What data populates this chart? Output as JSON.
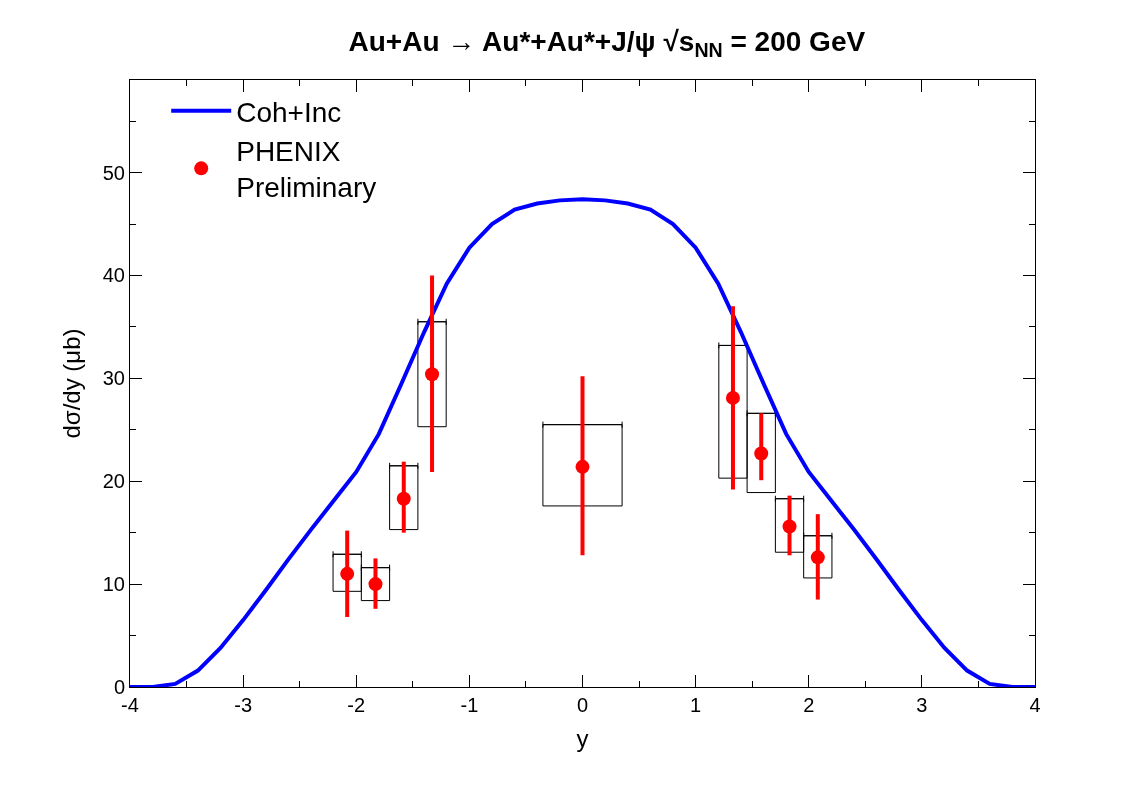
{
  "chart_data": {
    "type": "scatter",
    "title": "Au+Au → Au*+Au*+J/ψ √s$_{NN}$ = 200 GeV",
    "xlabel": "y",
    "ylabel": "dσ/dy (μb)",
    "xlim": [
      -4,
      4
    ],
    "xticks": [
      -4,
      -3,
      -2,
      -1,
      0,
      1,
      2,
      3,
      4
    ],
    "ylim": [
      0,
      59
    ],
    "yticks": [
      0,
      10,
      20,
      30,
      40,
      50
    ],
    "legend": "top",
    "series": [
      {
        "type": "line",
        "name": "Coh+Inc",
        "color": "#0000ff",
        "x": [
          -4,
          -3.8,
          -3.6,
          -3.4,
          -3.2,
          -3.0,
          -2.8,
          -2.6,
          -2.4,
          -2.2,
          -2.0,
          -1.8,
          -1.6,
          -1.4,
          -1.2,
          -1.0,
          -0.8,
          -0.6,
          -0.4,
          -0.2,
          0,
          0.2,
          0.4,
          0.6,
          0.8,
          1.0,
          1.2,
          1.4,
          1.6,
          1.8,
          2.0,
          2.2,
          2.4,
          2.6,
          2.8,
          3.0,
          3.2,
          3.4,
          3.6,
          3.8,
          4
        ],
        "values": [
          0,
          0,
          0.3,
          1.6,
          3.8,
          6.5,
          9.4,
          12.4,
          15.3,
          18.1,
          20.9,
          24.6,
          29.5,
          34.5,
          39.2,
          42.7,
          45.0,
          46.4,
          47.0,
          47.3,
          47.4,
          47.3,
          47.0,
          46.4,
          45.0,
          42.7,
          39.2,
          34.5,
          29.5,
          24.6,
          20.9,
          18.1,
          15.3,
          12.4,
          9.4,
          6.5,
          3.8,
          1.6,
          0.3,
          0,
          0
        ]
      },
      {
        "type": "bar",
        "color": "#000000",
        "x": [
          -2.08,
          -1.83,
          -1.58,
          -1.33,
          0,
          1.33,
          1.58,
          1.83,
          2.08
        ],
        "base": [
          9.3,
          8.4,
          15.3,
          25.3,
          17.6,
          20.3,
          18.9,
          13.1,
          10.6
        ],
        "values": [
          3.6,
          3.2,
          6.2,
          10.2,
          7.9,
          12.9,
          7.7,
          5.2,
          4.1
        ],
        "xerrors": [
          0.125,
          0.125,
          0.125,
          0.125,
          0.35,
          0.125,
          0.125,
          0.125,
          0.125
        ]
      },
      {
        "marker": "circle",
        "name": "PHENIX\nPreliminary",
        "color": "#ff0000",
        "x": [
          -2.08,
          -1.83,
          -1.58,
          -1.33,
          0,
          1.33,
          1.58,
          1.83,
          2.08
        ],
        "values": [
          11.0,
          10.0,
          18.3,
          30.4,
          21.4,
          28.1,
          22.7,
          15.6,
          12.6
        ],
        "errors": [
          [
            6.8,
            15.2
          ],
          [
            7.6,
            12.5
          ],
          [
            15.0,
            21.9
          ],
          [
            20.9,
            40.0
          ],
          [
            12.8,
            30.2
          ],
          [
            19.2,
            37.0
          ],
          [
            20.1,
            26.6
          ],
          [
            12.8,
            18.6
          ],
          [
            8.5,
            16.8
          ]
        ]
      }
    ]
  }
}
